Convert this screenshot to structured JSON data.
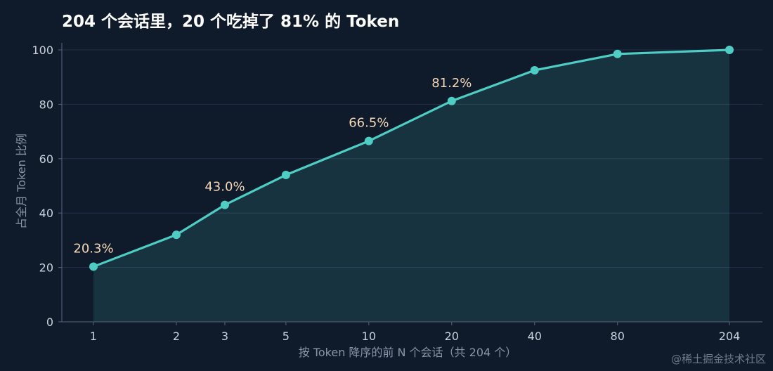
{
  "chart_data": {
    "type": "line",
    "title": "204 个会话里，20 个吃掉了 81% 的 Token",
    "xlabel": "按 Token 降序的前 N 个会话（共 204 个）",
    "ylabel": "占全月 Token 比例",
    "x_scale": "log",
    "x_ticks": [
      1,
      2,
      3,
      5,
      10,
      20,
      40,
      80,
      204
    ],
    "y_ticks": [
      0,
      20,
      40,
      60,
      80,
      100
    ],
    "ylim": [
      0,
      100
    ],
    "grid": "horizontal",
    "area_fill": true,
    "colors": {
      "line": "#4ecdc4",
      "label": "#f5d9b8",
      "background": "#0f1a2a"
    },
    "points": [
      {
        "x": 1,
        "y": 20.3
      },
      {
        "x": 2,
        "y": 32.0
      },
      {
        "x": 3,
        "y": 43.0
      },
      {
        "x": 5,
        "y": 54.0
      },
      {
        "x": 10,
        "y": 66.5
      },
      {
        "x": 20,
        "y": 81.2
      },
      {
        "x": 40,
        "y": 92.5
      },
      {
        "x": 80,
        "y": 98.5
      },
      {
        "x": 204,
        "y": 100
      }
    ],
    "annotations": [
      {
        "x": 1,
        "y": 20.3,
        "text": "20.3%"
      },
      {
        "x": 3,
        "y": 43.0,
        "text": "43.0%"
      },
      {
        "x": 10,
        "y": 66.5,
        "text": "66.5%"
      },
      {
        "x": 20,
        "y": 81.2,
        "text": "81.2%"
      }
    ]
  },
  "watermark": "@稀土掘金技术社区"
}
